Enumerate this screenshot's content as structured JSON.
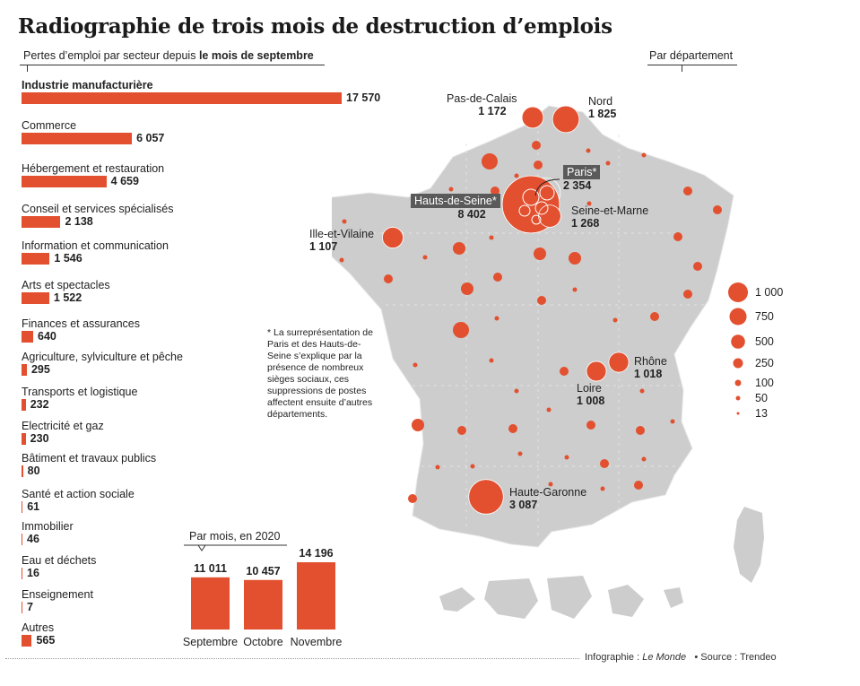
{
  "header": {
    "title": "Radiographie de trois mois de destruction d’emplois",
    "subtitle_prefix": "Pertes d’emploi par secteur depuis ",
    "subtitle_bold": "le mois de septembre",
    "map_label": "Par département"
  },
  "chart_data": [
    {
      "type": "bar",
      "orientation": "horizontal",
      "title": "Pertes d’emploi par secteur depuis le mois de septembre",
      "categories": [
        "Industrie manufacturière",
        "Commerce",
        "Hébergement et restauration",
        "Conseil et services spécialisés",
        "Information et communication",
        "Arts et spectacles",
        "Finances et assurances",
        "Agriculture, sylviculture et pêche",
        "Transports et logistique",
        "Electricité et gaz",
        "Bâtiment et travaux publics",
        "Santé et action sociale",
        "Immobilier",
        "Eau et déchets",
        "Enseignement",
        "Autres"
      ],
      "values": [
        17570,
        6057,
        4659,
        2138,
        1546,
        1522,
        640,
        295,
        232,
        230,
        80,
        61,
        46,
        16,
        7,
        565
      ],
      "value_labels": [
        "17 570",
        "6 057",
        "4 659",
        "2 138",
        "1 546",
        "1 522",
        "640",
        "295",
        "232",
        "230",
        "80",
        "61",
        "46",
        "16",
        "7",
        "565"
      ],
      "color": "#e2502f"
    },
    {
      "type": "bar",
      "title": "Par mois, en 2020",
      "categories": [
        "Septembre",
        "Octobre",
        "Novembre"
      ],
      "values": [
        11011,
        10457,
        14196
      ],
      "value_labels": [
        "11 011",
        "10 457",
        "14 196"
      ],
      "color": "#e2502f"
    },
    {
      "type": "scatter",
      "title": "Par département",
      "labeled_departments": [
        {
          "name": "Pas-de-Calais",
          "value": 1172,
          "label": "1 172"
        },
        {
          "name": "Nord",
          "value": 1825,
          "label": "1 825"
        },
        {
          "name": "Paris*",
          "value": 2354,
          "label": "2 354"
        },
        {
          "name": "Hauts-de-Seine*",
          "value": 8402,
          "label": "8 402"
        },
        {
          "name": "Seine-et-Marne",
          "value": 1268,
          "label": "1 268"
        },
        {
          "name": "Ille-et-Vilaine",
          "value": 1107,
          "label": "1 107"
        },
        {
          "name": "Rhône",
          "value": 1018,
          "label": "1 018"
        },
        {
          "name": "Loire",
          "value": 1008,
          "label": "1 008"
        },
        {
          "name": "Haute-Garonne",
          "value": 3087,
          "label": "3 087"
        }
      ],
      "size_legend": [
        1000,
        750,
        500,
        250,
        100,
        50,
        13
      ],
      "size_legend_labels": [
        "1 000",
        "750",
        "500",
        "250",
        "100",
        "50",
        "13"
      ],
      "color": "#e2502f"
    }
  ],
  "note": "* La surreprésentation de Paris et des Hauts-de-Seine s’explique par la présence de nombreux sièges sociaux, ces suppressions de postes affectent ensuite d’autres départements.",
  "footer": {
    "infographie_label": "Infographie : ",
    "infographie_source": "Le Monde",
    "source": "• Source : Trendeo"
  }
}
